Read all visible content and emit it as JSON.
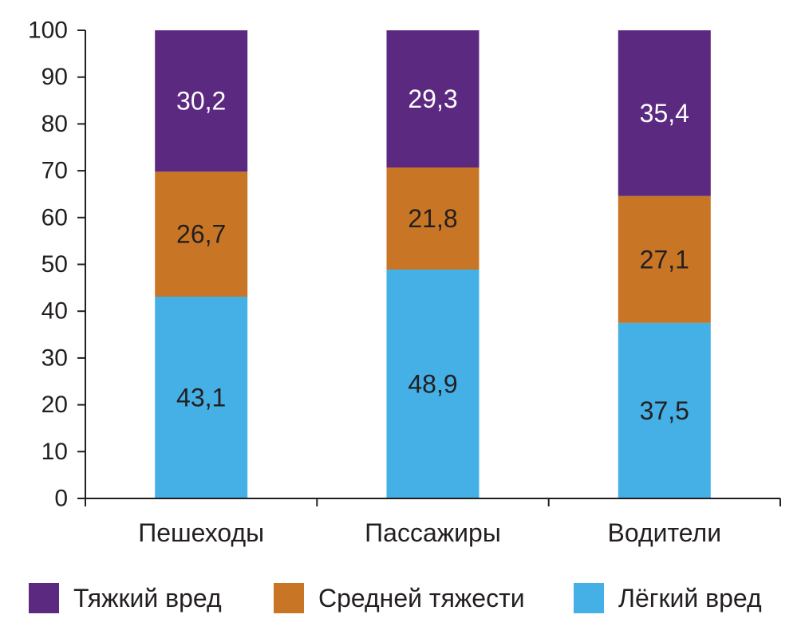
{
  "chart_data": {
    "type": "bar",
    "stacked": true,
    "categories": [
      "Пешеходы",
      "Пассажиры",
      "Водители"
    ],
    "ylim": [
      0,
      100
    ],
    "yticks": [
      "0",
      "10",
      "20",
      "30",
      "40",
      "50",
      "60",
      "70",
      "80",
      "90",
      "100"
    ],
    "grid": false,
    "legend_position": "bottom",
    "series": [
      {
        "name": "Лёгкий вред",
        "color": "#45b0e6",
        "label_color": "#231f20",
        "values": [
          43.1,
          48.9,
          37.5
        ],
        "labels": [
          "43,1",
          "48,9",
          "37,5"
        ]
      },
      {
        "name": "Средней тяжести",
        "color": "#c87625",
        "label_color": "#231f20",
        "values": [
          26.7,
          21.8,
          27.1
        ],
        "labels": [
          "26,7",
          "21,8",
          "27,1"
        ]
      },
      {
        "name": "Тяжкий вред",
        "color": "#5b2a80",
        "label_color": "#ffffff",
        "values": [
          30.2,
          29.3,
          35.4
        ],
        "labels": [
          "30,2",
          "29,3",
          "35,4"
        ]
      }
    ],
    "legend_order": [
      "Тяжкий вред",
      "Средней тяжести",
      "Лёгкий вред"
    ]
  }
}
